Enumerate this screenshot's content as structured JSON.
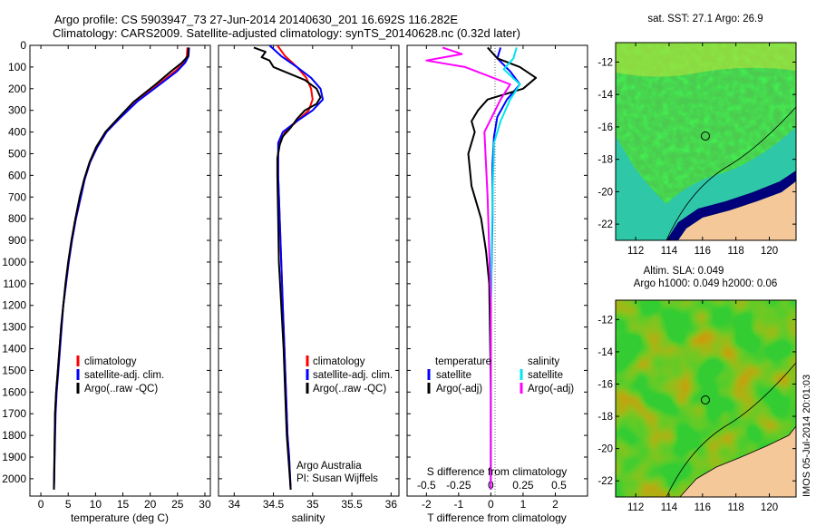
{
  "header": {
    "line1": "Argo profile: CS 5903947_73 27-Jun-2014 20140630_201 16.692S 116.282E",
    "line2": "Climatology: CARS2009. Satellite-adjusted climatology: synTS_20140628.nc (0.32d later)"
  },
  "colors": {
    "red": "#ff0000",
    "blue": "#0000ff",
    "black": "#000000",
    "cyan": "#00e5ee",
    "magenta": "#ff00ff",
    "land": "#f5c89a"
  },
  "chart_data": [
    {
      "type": "line",
      "panel": "temperature",
      "xlabel": "temperature (deg C)",
      "xlim": [
        -2,
        31
      ],
      "xticks": [
        "0",
        "5",
        "10",
        "15",
        "20",
        "25",
        "30"
      ],
      "xtick_values": [
        0,
        5,
        10,
        15,
        20,
        25,
        30
      ],
      "ylim": [
        0,
        2080
      ],
      "yticks": [
        "0",
        "100",
        "200",
        "300",
        "400",
        "500",
        "600",
        "700",
        "800",
        "900",
        "1000",
        "1100",
        "1200",
        "1300",
        "1400",
        "1500",
        "1600",
        "1700",
        "1800",
        "1900",
        "2000"
      ],
      "ytick_values": [
        0,
        100,
        200,
        300,
        400,
        500,
        600,
        700,
        800,
        900,
        1000,
        1100,
        1200,
        1300,
        1400,
        1500,
        1600,
        1700,
        1800,
        1900,
        2000
      ],
      "legend": [
        "climatology",
        "satellite-adj. clim.",
        "Argo(..raw -QC)"
      ],
      "series": [
        {
          "name": "climatology",
          "color": "#ff0000",
          "x": [
            26.8,
            26.7,
            26.2,
            24.5,
            21.5,
            17.5,
            14.3,
            12.0,
            10.3,
            9.0,
            8.0,
            7.3,
            6.4,
            5.7,
            5.1,
            4.6,
            4.1,
            3.7,
            3.4,
            3.1,
            2.8,
            2.6,
            2.4
          ],
          "y": [
            10,
            50,
            80,
            120,
            180,
            260,
            340,
            400,
            470,
            540,
            620,
            700,
            800,
            900,
            1000,
            1100,
            1200,
            1300,
            1400,
            1500,
            1600,
            1700,
            2050
          ]
        },
        {
          "name": "satellite-adj. clim.",
          "color": "#0000ff",
          "x": [
            27.1,
            27.0,
            26.4,
            24.9,
            21.8,
            17.6,
            14.3,
            12.0,
            10.3,
            9.0,
            8.0,
            7.3,
            6.4,
            5.7,
            5.1,
            4.6,
            4.1,
            3.8,
            3.5,
            3.2,
            2.9,
            2.7,
            2.4
          ],
          "y": [
            10,
            50,
            80,
            120,
            180,
            260,
            340,
            400,
            470,
            540,
            620,
            700,
            800,
            900,
            1000,
            1100,
            1200,
            1300,
            1400,
            1500,
            1600,
            1700,
            2050
          ]
        },
        {
          "name": "Argo(..raw -QC)",
          "color": "#000000",
          "x": [
            27.0,
            26.9,
            25.8,
            23.8,
            21.0,
            17.0,
            14.0,
            11.8,
            10.1,
            8.9,
            7.9,
            7.1,
            6.3,
            5.6,
            5.0,
            4.5,
            4.1,
            3.7,
            3.4,
            3.1,
            2.8,
            2.6,
            2.4
          ],
          "y": [
            10,
            50,
            80,
            120,
            180,
            260,
            340,
            400,
            470,
            540,
            620,
            700,
            800,
            900,
            1000,
            1100,
            1200,
            1300,
            1400,
            1500,
            1600,
            1700,
            2050
          ]
        }
      ]
    },
    {
      "type": "line",
      "panel": "salinity",
      "xlabel": "salinity",
      "xlim": [
        33.8,
        36.1
      ],
      "xticks": [
        "34",
        "34.5",
        "35",
        "35.5",
        "36"
      ],
      "xtick_values": [
        34,
        34.5,
        35,
        35.5,
        36
      ],
      "ylim": [
        0,
        2080
      ],
      "legend": [
        "climatology",
        "satellite-adj. clim.",
        "Argo(..raw -QC)"
      ],
      "annotation": [
        "Argo Australia",
        "PI: Susan Wijffels"
      ],
      "series": [
        {
          "name": "climatology",
          "color": "#ff0000",
          "x": [
            34.55,
            34.65,
            34.8,
            34.92,
            34.98,
            35.0,
            34.95,
            34.8,
            34.65,
            34.58,
            34.56,
            34.56,
            34.58,
            34.6,
            34.62,
            34.64,
            34.66,
            34.68,
            34.7,
            34.72
          ],
          "y": [
            0,
            50,
            100,
            150,
            200,
            250,
            300,
            350,
            400,
            450,
            500,
            600,
            800,
            1000,
            1200,
            1400,
            1600,
            1800,
            1900,
            2050
          ]
        },
        {
          "name": "satellite-adj. clim.",
          "color": "#0000ff",
          "x": [
            34.45,
            34.6,
            34.8,
            34.98,
            35.1,
            35.13,
            35.0,
            34.8,
            34.62,
            34.56,
            34.56,
            34.56,
            34.58,
            34.6,
            34.62,
            34.64,
            34.66,
            34.68,
            34.7,
            34.72
          ],
          "y": [
            0,
            50,
            100,
            150,
            200,
            250,
            300,
            350,
            400,
            450,
            500,
            600,
            800,
            1000,
            1200,
            1400,
            1600,
            1800,
            1900,
            2050
          ]
        },
        {
          "name": "Argo(..raw -QC)",
          "color": "#000000",
          "x": [
            34.25,
            34.4,
            34.35,
            34.45,
            34.5,
            34.7,
            34.9,
            35.05,
            35.1,
            35.05,
            34.9,
            34.8,
            34.72,
            34.62,
            34.58,
            34.55,
            34.55,
            34.56,
            34.57,
            34.6,
            34.63,
            34.65,
            34.67,
            34.7,
            34.72
          ],
          "y": [
            10,
            30,
            55,
            70,
            100,
            130,
            160,
            200,
            240,
            270,
            300,
            340,
            380,
            420,
            460,
            520,
            600,
            800,
            1000,
            1200,
            1400,
            1600,
            1800,
            1950,
            2050
          ]
        }
      ]
    },
    {
      "type": "line",
      "panel": "difference",
      "xlabel": "T difference from climatology",
      "xlabel_top": "S difference from climatology",
      "xlim": [
        -2.6,
        3.0
      ],
      "xticks": [
        "-2",
        "-1",
        "0",
        "1",
        "2"
      ],
      "xtick_values": [
        -2,
        -1,
        0,
        1,
        2
      ],
      "sticks": [
        "-0.5",
        "-0.25",
        "0",
        "0.25",
        "0.5"
      ],
      "stick_values": [
        -2,
        -1,
        0,
        1,
        2
      ],
      "ylim": [
        0,
        2080
      ],
      "legend": {
        "heading_t": "temperature",
        "heading_s": "salinity",
        "items": [
          "satellite",
          "Argo(-adj)",
          "satellite",
          "Argo(-adj)"
        ]
      },
      "series": [
        {
          "name": "satellite",
          "color": "#0000ff",
          "x": [
            0.3,
            0.2,
            0.6,
            0.9,
            0.5,
            0.2,
            0.1,
            0.05,
            0.05,
            0.0,
            0.0,
            0.0
          ],
          "y": [
            10,
            60,
            120,
            180,
            250,
            330,
            420,
            550,
            800,
            1200,
            1800,
            2050
          ]
        },
        {
          "name": "Argo(-adj)",
          "color": "#000000",
          "x": [
            -0.1,
            0.2,
            0.9,
            1.4,
            1.0,
            -0.1,
            -0.4,
            -0.6,
            -0.5,
            -0.7,
            -0.6,
            -0.3,
            -0.15,
            -0.05,
            0.0,
            0.0
          ],
          "y": [
            10,
            60,
            100,
            150,
            200,
            250,
            300,
            350,
            400,
            500,
            650,
            800,
            950,
            1100,
            1600,
            2050
          ]
        },
        {
          "name": "satellite",
          "color": "#00e5ee",
          "x": [
            0.8,
            0.7,
            0.4,
            0.9,
            0.6,
            0.3,
            0.1,
            0.05,
            0.0,
            0.0
          ],
          "y": [
            10,
            60,
            110,
            180,
            250,
            350,
            450,
            700,
            1200,
            2050
          ]
        },
        {
          "name": "Argo(-adj)",
          "color": "#ff00ff",
          "x": [
            -1.5,
            -0.9,
            -2.0,
            -0.8,
            0.6,
            0.3,
            -0.2,
            -0.1,
            0.0,
            0.0
          ],
          "y": [
            10,
            40,
            70,
            100,
            180,
            250,
            400,
            700,
            1200,
            2050
          ]
        }
      ]
    }
  ],
  "maps": [
    {
      "title": "sat. SST: 27.1  Argo: 26.9",
      "xticks": [
        "112",
        "114",
        "116",
        "118",
        "120"
      ],
      "xtick_values": [
        112,
        114,
        116,
        118,
        120
      ],
      "yticks": [
        "-12",
        "-14",
        "-16",
        "-18",
        "-20",
        "-22"
      ],
      "ytick_values": [
        -12,
        -14,
        -16,
        -18,
        -20,
        -22
      ],
      "lon_range": [
        110.8,
        121.6
      ],
      "lat_range": [
        -23.0,
        -10.8
      ],
      "marker": [
        116.3,
        -16.7
      ]
    },
    {
      "title1": "Altim. SLA: 0.049",
      "title2": "Argo h1000: 0.049 h2000: 0.06",
      "xticks": [
        "112",
        "114",
        "116",
        "118",
        "120"
      ],
      "xtick_values": [
        112,
        114,
        116,
        118,
        120
      ],
      "yticks": [
        "-12",
        "-14",
        "-16",
        "-18",
        "-20",
        "-22"
      ],
      "ytick_values": [
        -12,
        -14,
        -16,
        -18,
        -20,
        -22
      ],
      "lon_range": [
        110.8,
        121.6
      ],
      "lat_range": [
        -23.0,
        -10.8
      ],
      "marker": [
        116.3,
        -16.7
      ]
    }
  ],
  "footer": "IMOS 05-Jul-2014 20:01:03"
}
